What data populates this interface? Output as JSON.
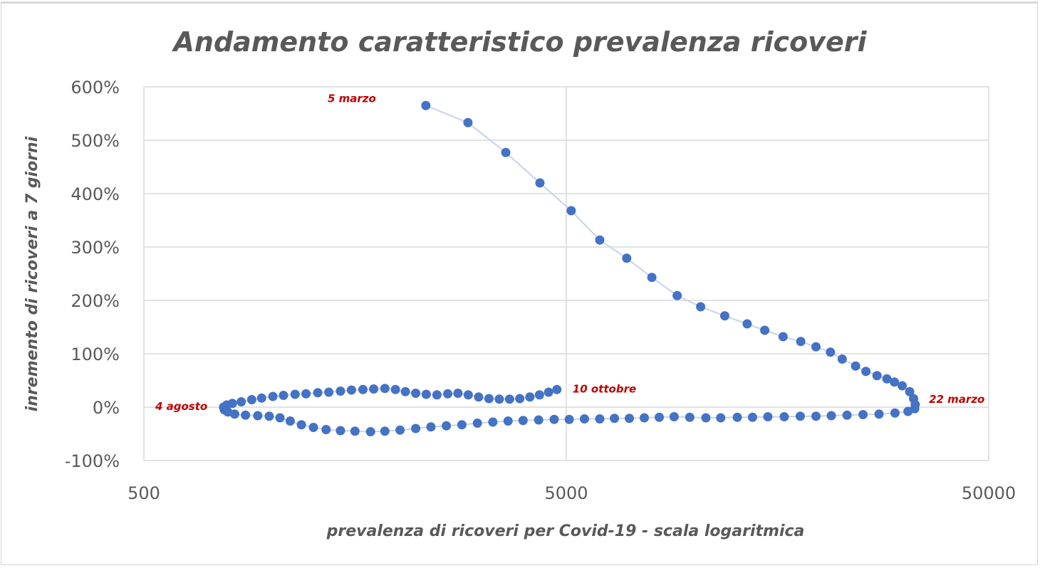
{
  "chart_data": {
    "type": "scatter",
    "title": "Andamento caratteristico prevalenza ricoveri",
    "xlabel": "prevalenza di ricoveri per Covid-19 - scala logaritmica",
    "ylabel": "inremento di ricoveri a 7 giorni",
    "x_scale": "log",
    "xlim": [
      500,
      50000
    ],
    "ylim": [
      -100,
      600
    ],
    "x_ticks": [
      500,
      5000,
      50000
    ],
    "x_tick_labels": [
      "500",
      "5000",
      "50000"
    ],
    "y_ticks": [
      600,
      500,
      400,
      300,
      200,
      100,
      0,
      -100
    ],
    "y_tick_labels": [
      "600%",
      "500%",
      "400%",
      "300%",
      "200%",
      "100%",
      "0%",
      "-100%"
    ],
    "grid": true,
    "colors": {
      "marker": "#4472c4",
      "line": "#c9d3e6",
      "annotation": "#c00000",
      "text": "#595959",
      "grid": "#d9d9d9"
    },
    "annotations": [
      {
        "text": "5 marzo",
        "x": 2325,
        "y": 565
      },
      {
        "text": "22 marzo",
        "x": 33400,
        "y": 0
      },
      {
        "text": "4 agosto",
        "x": 770,
        "y": 0
      },
      {
        "text": "10 ottobre",
        "x": 4750,
        "y": 33
      }
    ],
    "series": [
      {
        "name": "ricoveri",
        "points": [
          [
            2325,
            565
          ],
          [
            2925,
            533
          ],
          [
            3595,
            477
          ],
          [
            4330,
            420
          ],
          [
            5135,
            368
          ],
          [
            6000,
            313
          ],
          [
            6950,
            279
          ],
          [
            7970,
            243
          ],
          [
            9150,
            209
          ],
          [
            10400,
            188
          ],
          [
            11860,
            171
          ],
          [
            13400,
            156
          ],
          [
            14750,
            144
          ],
          [
            16300,
            132
          ],
          [
            17950,
            123
          ],
          [
            19500,
            113
          ],
          [
            21100,
            103
          ],
          [
            22500,
            90
          ],
          [
            24200,
            77
          ],
          [
            25600,
            67
          ],
          [
            27200,
            59
          ],
          [
            28700,
            53
          ],
          [
            29900,
            47
          ],
          [
            31200,
            40
          ],
          [
            32500,
            29
          ],
          [
            33200,
            16
          ],
          [
            33500,
            5
          ],
          [
            33400,
            -3
          ],
          [
            32200,
            -8
          ],
          [
            30000,
            -11
          ],
          [
            27500,
            -13
          ],
          [
            25200,
            -14
          ],
          [
            23100,
            -15
          ],
          [
            21200,
            -16
          ],
          [
            19500,
            -17
          ],
          [
            17900,
            -17
          ],
          [
            16400,
            -18
          ],
          [
            15000,
            -18
          ],
          [
            13800,
            -19
          ],
          [
            12700,
            -19
          ],
          [
            11600,
            -20
          ],
          [
            10700,
            -20
          ],
          [
            9800,
            -19
          ],
          [
            9000,
            -18
          ],
          [
            8300,
            -19
          ],
          [
            7650,
            -20
          ],
          [
            7050,
            -21
          ],
          [
            6500,
            -21
          ],
          [
            6000,
            -22
          ],
          [
            5520,
            -22
          ],
          [
            5080,
            -23
          ],
          [
            4680,
            -23
          ],
          [
            4300,
            -24
          ],
          [
            3950,
            -25
          ],
          [
            3640,
            -26
          ],
          [
            3350,
            -28
          ],
          [
            3080,
            -30
          ],
          [
            2830,
            -33
          ],
          [
            2600,
            -35
          ],
          [
            2390,
            -37
          ],
          [
            2200,
            -40
          ],
          [
            2020,
            -43
          ],
          [
            1860,
            -45
          ],
          [
            1720,
            -46
          ],
          [
            1580,
            -45
          ],
          [
            1460,
            -44
          ],
          [
            1350,
            -42
          ],
          [
            1260,
            -38
          ],
          [
            1180,
            -33
          ],
          [
            1110,
            -26
          ],
          [
            1050,
            -20
          ],
          [
            990,
            -17
          ],
          [
            930,
            -16
          ],
          [
            870,
            -15
          ],
          [
            820,
            -13
          ],
          [
            790,
            -9
          ],
          [
            775,
            -5
          ],
          [
            772,
            0
          ],
          [
            785,
            4
          ],
          [
            810,
            7
          ],
          [
            850,
            10
          ],
          [
            900,
            14
          ],
          [
            950,
            17
          ],
          [
            1010,
            20
          ],
          [
            1070,
            22
          ],
          [
            1140,
            24
          ],
          [
            1210,
            25
          ],
          [
            1290,
            27
          ],
          [
            1370,
            28
          ],
          [
            1460,
            30
          ],
          [
            1550,
            32
          ],
          [
            1650,
            33
          ],
          [
            1750,
            34
          ],
          [
            1860,
            35
          ],
          [
            1970,
            33
          ],
          [
            2080,
            29
          ],
          [
            2200,
            26
          ],
          [
            2330,
            24
          ],
          [
            2470,
            23
          ],
          [
            2620,
            25
          ],
          [
            2770,
            26
          ],
          [
            2930,
            23
          ],
          [
            3100,
            19
          ],
          [
            3280,
            16
          ],
          [
            3470,
            15
          ],
          [
            3670,
            15
          ],
          [
            3880,
            16
          ],
          [
            4100,
            19
          ],
          [
            4320,
            23
          ],
          [
            4540,
            28
          ],
          [
            4750,
            33
          ]
        ]
      }
    ]
  }
}
